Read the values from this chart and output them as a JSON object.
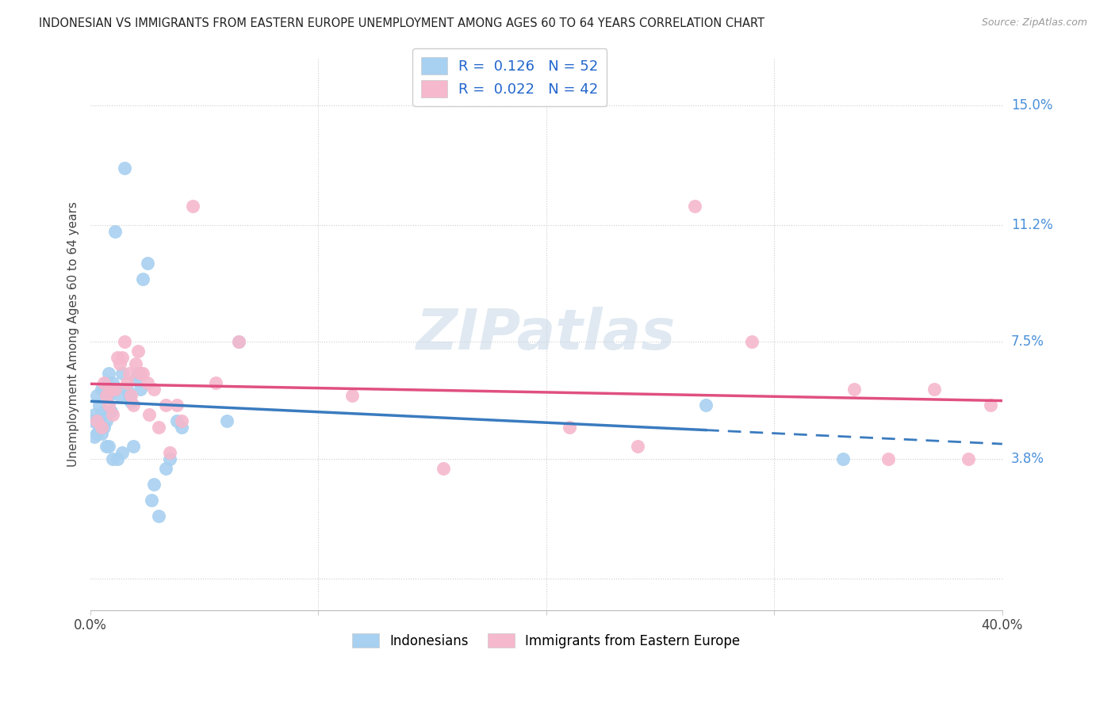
{
  "title": "INDONESIAN VS IMMIGRANTS FROM EASTERN EUROPE UNEMPLOYMENT AMONG AGES 60 TO 64 YEARS CORRELATION CHART",
  "source": "Source: ZipAtlas.com",
  "ylabel": "Unemployment Among Ages 60 to 64 years",
  "yticks": [
    0.0,
    0.038,
    0.075,
    0.112,
    0.15
  ],
  "ytick_labels": [
    "",
    "3.8%",
    "7.5%",
    "11.2%",
    "15.0%"
  ],
  "xlim": [
    0.0,
    0.4
  ],
  "ylim": [
    -0.01,
    0.165
  ],
  "legend_labels": [
    "Indonesians",
    "Immigrants from Eastern Europe"
  ],
  "R_indonesian": "0.126",
  "N_indonesian": "52",
  "R_eastern": "0.022",
  "N_eastern": "42",
  "color_indonesian": "#a8d0f0",
  "color_eastern": "#f5b8cc",
  "trendline_indonesian_color": "#3a7bbf",
  "trendline_eastern_color": "#e05080",
  "background_color": "#ffffff",
  "indo_x": [
    0.001,
    0.002,
    0.002,
    0.003,
    0.003,
    0.003,
    0.004,
    0.004,
    0.005,
    0.005,
    0.005,
    0.006,
    0.006,
    0.006,
    0.007,
    0.007,
    0.007,
    0.007,
    0.008,
    0.008,
    0.008,
    0.009,
    0.009,
    0.01,
    0.01,
    0.011,
    0.011,
    0.012,
    0.013,
    0.014,
    0.014,
    0.015,
    0.016,
    0.017,
    0.018,
    0.019,
    0.02,
    0.021,
    0.022,
    0.023,
    0.025,
    0.027,
    0.028,
    0.03,
    0.033,
    0.035,
    0.038,
    0.04,
    0.06,
    0.065,
    0.27,
    0.33
  ],
  "indo_y": [
    0.05,
    0.052,
    0.045,
    0.05,
    0.058,
    0.046,
    0.055,
    0.048,
    0.052,
    0.06,
    0.046,
    0.06,
    0.053,
    0.048,
    0.062,
    0.058,
    0.05,
    0.042,
    0.065,
    0.058,
    0.042,
    0.06,
    0.053,
    0.062,
    0.038,
    0.11,
    0.06,
    0.038,
    0.058,
    0.065,
    0.04,
    0.13,
    0.06,
    0.058,
    0.056,
    0.042,
    0.063,
    0.065,
    0.06,
    0.095,
    0.1,
    0.025,
    0.03,
    0.02,
    0.035,
    0.038,
    0.05,
    0.048,
    0.05,
    0.075,
    0.055,
    0.038
  ],
  "east_x": [
    0.003,
    0.005,
    0.006,
    0.007,
    0.008,
    0.009,
    0.01,
    0.011,
    0.012,
    0.013,
    0.014,
    0.015,
    0.016,
    0.017,
    0.018,
    0.019,
    0.02,
    0.021,
    0.022,
    0.023,
    0.025,
    0.026,
    0.028,
    0.03,
    0.033,
    0.035,
    0.038,
    0.04,
    0.045,
    0.055,
    0.065,
    0.115,
    0.155,
    0.21,
    0.24,
    0.265,
    0.29,
    0.335,
    0.35,
    0.37,
    0.385,
    0.395
  ],
  "east_y": [
    0.05,
    0.048,
    0.062,
    0.058,
    0.055,
    0.06,
    0.052,
    0.06,
    0.07,
    0.068,
    0.07,
    0.075,
    0.062,
    0.065,
    0.058,
    0.055,
    0.068,
    0.072,
    0.065,
    0.065,
    0.062,
    0.052,
    0.06,
    0.048,
    0.055,
    0.04,
    0.055,
    0.05,
    0.118,
    0.062,
    0.075,
    0.058,
    0.035,
    0.048,
    0.042,
    0.118,
    0.075,
    0.06,
    0.038,
    0.06,
    0.038,
    0.055
  ]
}
